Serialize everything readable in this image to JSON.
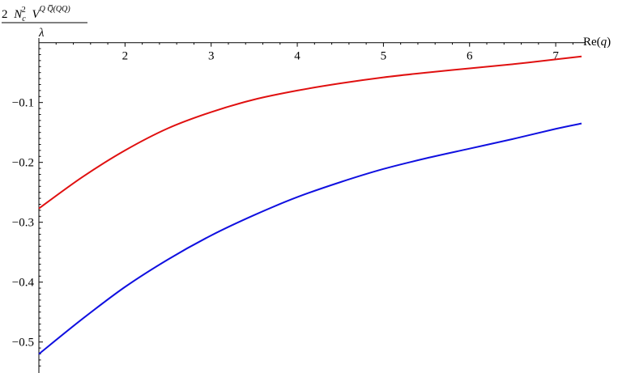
{
  "chart_data": {
    "type": "line",
    "title": "",
    "xlabel": {
      "prefix": "Re(",
      "var": "q",
      "suffix": ")"
    },
    "ylabel": {
      "numerator": {
        "coef": "2",
        "N": "N",
        "N_sub": "c",
        "N_sup": "2",
        "V": "V",
        "V_sup": "Q Q̅(QQ)"
      },
      "denominator": "λ"
    },
    "xlim": [
      1.0,
      7.3
    ],
    "ylim": [
      -0.545,
      0.005
    ],
    "xticks": [
      2,
      3,
      4,
      5,
      6,
      7
    ],
    "xtick_labels": [
      "2",
      "3",
      "4",
      "5",
      "6",
      "7"
    ],
    "yticks": [
      -0.1,
      -0.2,
      -0.3,
      -0.4,
      -0.5
    ],
    "ytick_labels": [
      "−0.1",
      "−0.2",
      "−0.3",
      "−0.4",
      "−0.5"
    ],
    "grid": false,
    "series": [
      {
        "color": "#e01010",
        "x": [
          1.0,
          1.5,
          2.0,
          2.5,
          3.0,
          3.5,
          4.0,
          4.5,
          5.0,
          5.5,
          6.0,
          6.5,
          7.0,
          7.3
        ],
        "y": [
          -0.277,
          -0.225,
          -0.18,
          -0.143,
          -0.116,
          -0.095,
          -0.08,
          -0.068,
          -0.058,
          -0.05,
          -0.043,
          -0.036,
          -0.028,
          -0.023
        ]
      },
      {
        "color": "#1010e0",
        "x": [
          1.0,
          1.5,
          2.0,
          2.5,
          3.0,
          3.5,
          4.0,
          4.5,
          5.0,
          5.5,
          6.0,
          6.5,
          7.0,
          7.3
        ],
        "y": [
          -0.52,
          -0.462,
          -0.408,
          -0.362,
          -0.322,
          -0.288,
          -0.258,
          -0.233,
          -0.211,
          -0.193,
          -0.177,
          -0.161,
          -0.144,
          -0.135
        ]
      }
    ]
  }
}
